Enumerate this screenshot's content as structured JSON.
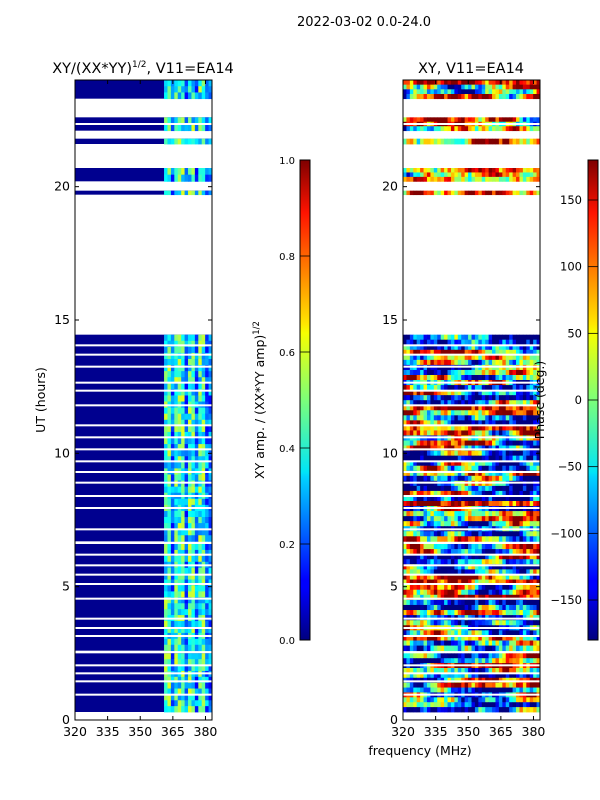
{
  "suptitle": "2022-03-02 0.0-24.0",
  "chart_data": [
    {
      "type": "heatmap",
      "title_main": "XY/(XX*YY)",
      "title_sup": "1/2",
      "title_rest": ", V11=EA14",
      "xlabel": "",
      "ylabel": "UT (hours)",
      "xlim": [
        320,
        383
      ],
      "ylim": [
        0,
        24
      ],
      "xticks": [
        320,
        335,
        350,
        365,
        380
      ],
      "yticks": [
        0,
        5,
        10,
        15,
        20
      ],
      "colorbar": {
        "label_main": "XY amp. / (XX*YY amp)",
        "label_sup": "1/2",
        "range": [
          0.0,
          1.0
        ],
        "ticks": [
          0.0,
          0.2,
          0.4,
          0.6,
          0.8,
          1.0
        ],
        "tick_labels": [
          "0.0",
          "0.2",
          "0.4",
          "0.6",
          "0.8",
          "1.0"
        ]
      }
    },
    {
      "type": "heatmap",
      "title_main": "XY, V11=EA14",
      "xlabel": "frequency (MHz)",
      "ylabel": "",
      "xlim": [
        320,
        383
      ],
      "ylim": [
        0,
        24
      ],
      "xticks": [
        320,
        335,
        350,
        365,
        380
      ],
      "yticks": [
        0,
        5,
        10,
        15,
        20
      ],
      "colorbar": {
        "label_main": "Phase (deg.)",
        "range": [
          -180,
          180
        ],
        "ticks": [
          150,
          100,
          50,
          0,
          -50,
          -100,
          -150
        ],
        "tick_labels": [
          "150",
          "100",
          "50",
          "0",
          "−50",
          "−100",
          "−150"
        ]
      }
    }
  ],
  "data_ranges_hours": [
    [
      0.3,
      2.5
    ],
    [
      2.6,
      6.6
    ],
    [
      6.7,
      14.45
    ],
    [
      19.7,
      19.85
    ],
    [
      20.2,
      20.7
    ],
    [
      21.6,
      21.8
    ],
    [
      22.1,
      22.6
    ],
    [
      23.3,
      24.0
    ]
  ],
  "gap_lines_hours": [
    0.95,
    1.45,
    1.75,
    2.05,
    3.15,
    3.45,
    3.8,
    4.55,
    5.1,
    5.45,
    5.8,
    6.2,
    7.15,
    7.95,
    8.4,
    8.9,
    9.3,
    9.7,
    10.15,
    10.6,
    11.05,
    11.8,
    12.35,
    12.65,
    13.25,
    13.7,
    14.05,
    22.35
  ]
}
